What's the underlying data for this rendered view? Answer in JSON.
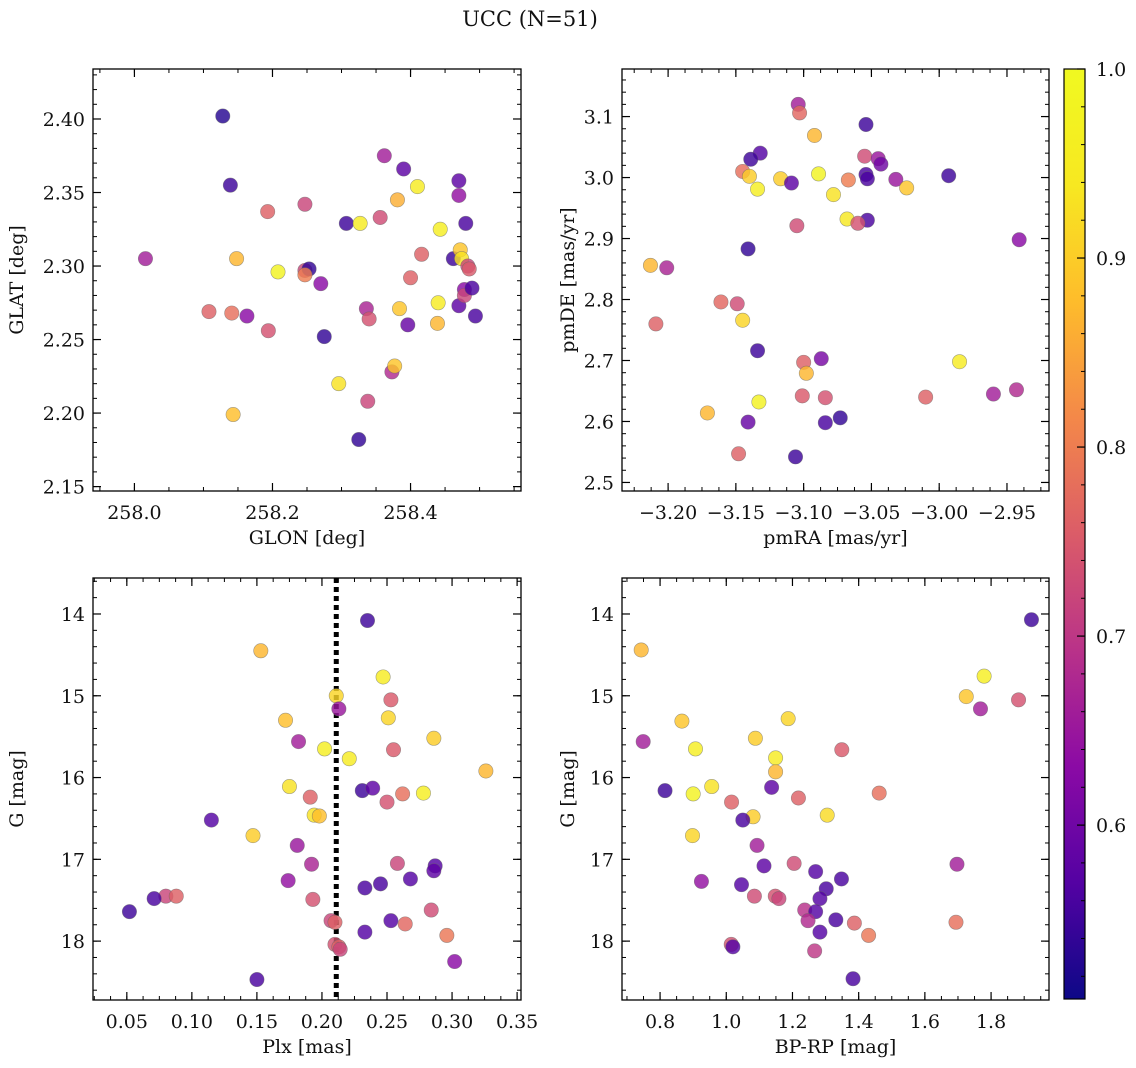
{
  "figure": {
    "title": "UCC (N=51)",
    "colorbar": {
      "ticks": [
        "0.6",
        "0.7",
        "0.8",
        "0.9",
        "1.0"
      ],
      "tick_values": [
        0.6,
        0.7,
        0.8,
        0.9,
        1.0
      ],
      "range": [
        0.508,
        1.0
      ],
      "colormap": "plasma"
    },
    "colors": {
      "low": "#0d0887",
      "mid": "#cc4778",
      "high": "#f0f921",
      "vline": "#000000"
    }
  },
  "chart_data": [
    {
      "type": "scatter",
      "xlabel": "GLON [deg]",
      "ylabel": "GLAT [deg]",
      "xlim": [
        257.94,
        258.56
      ],
      "ylim": [
        2.147,
        2.434
      ],
      "xticks": [
        "258.0",
        "258.2",
        "258.4"
      ],
      "xtick_values": [
        258.0,
        258.2,
        258.4
      ],
      "yticks": [
        "2.15",
        "2.20",
        "2.25",
        "2.30",
        "2.35",
        "2.40"
      ],
      "ytick_values": [
        2.15,
        2.2,
        2.25,
        2.3,
        2.35,
        2.4
      ],
      "points": [
        [
          258.128,
          2.402,
          0.53
        ],
        [
          258.139,
          2.355,
          0.55
        ],
        [
          258.016,
          2.305,
          0.66
        ],
        [
          258.108,
          2.269,
          0.76
        ],
        [
          258.141,
          2.268,
          0.78
        ],
        [
          258.148,
          2.305,
          0.87
        ],
        [
          258.163,
          2.266,
          0.63
        ],
        [
          258.194,
          2.256,
          0.74
        ],
        [
          258.193,
          2.337,
          0.76
        ],
        [
          258.143,
          2.199,
          0.88
        ],
        [
          258.208,
          2.296,
          0.98
        ],
        [
          258.247,
          2.342,
          0.72
        ],
        [
          258.247,
          2.297,
          0.72
        ],
        [
          258.253,
          2.298,
          0.54
        ],
        [
          258.247,
          2.294,
          0.8
        ],
        [
          258.27,
          2.288,
          0.63
        ],
        [
          258.275,
          2.252,
          0.54
        ],
        [
          258.296,
          2.22,
          0.93
        ],
        [
          258.307,
          2.329,
          0.55
        ],
        [
          258.325,
          2.182,
          0.54
        ],
        [
          258.327,
          2.329,
          0.95
        ],
        [
          258.336,
          2.271,
          0.67
        ],
        [
          258.338,
          2.208,
          0.72
        ],
        [
          258.34,
          2.264,
          0.74
        ],
        [
          258.356,
          2.333,
          0.73
        ],
        [
          258.362,
          2.375,
          0.66
        ],
        [
          258.373,
          2.228,
          0.68
        ],
        [
          258.377,
          2.232,
          0.89
        ],
        [
          258.381,
          2.345,
          0.86
        ],
        [
          258.384,
          2.271,
          0.89
        ],
        [
          258.39,
          2.366,
          0.58
        ],
        [
          258.396,
          2.26,
          0.59
        ],
        [
          258.4,
          2.292,
          0.76
        ],
        [
          258.41,
          2.354,
          0.95
        ],
        [
          258.416,
          2.308,
          0.76
        ],
        [
          258.439,
          2.261,
          0.87
        ],
        [
          258.44,
          2.275,
          0.95
        ],
        [
          258.443,
          2.325,
          0.96
        ],
        [
          258.462,
          2.305,
          0.55
        ],
        [
          258.47,
          2.348,
          0.64
        ],
        [
          258.47,
          2.273,
          0.58
        ],
        [
          258.47,
          2.358,
          0.58
        ],
        [
          258.472,
          2.311,
          0.89
        ],
        [
          258.474,
          2.305,
          0.93
        ],
        [
          258.478,
          2.284,
          0.63
        ],
        [
          258.478,
          2.28,
          0.72
        ],
        [
          258.48,
          2.329,
          0.56
        ],
        [
          258.483,
          2.3,
          0.72
        ],
        [
          258.485,
          2.298,
          0.75
        ],
        [
          258.489,
          2.285,
          0.56
        ],
        [
          258.494,
          2.266,
          0.56
        ]
      ]
    },
    {
      "type": "scatter",
      "xlabel": "pmRA [mas/yr]",
      "ylabel": "pmDE [mas/yr]",
      "xlim": [
        -3.234,
        -2.919
      ],
      "ylim": [
        2.486,
        3.178
      ],
      "xticks": [
        "−3.20",
        "−3.15",
        "−3.10",
        "−3.05",
        "−3.00",
        "−2.95"
      ],
      "xtick_values": [
        -3.2,
        -3.15,
        -3.1,
        -3.05,
        -3.0,
        -2.95
      ],
      "yticks": [
        "2.5",
        "2.6",
        "2.7",
        "2.8",
        "2.9",
        "3.0",
        "3.1"
      ],
      "ytick_values": [
        2.5,
        2.6,
        2.7,
        2.8,
        2.9,
        3.0,
        3.1
      ],
      "points": [
        [
          -3.104,
          3.12,
          0.66
        ],
        [
          -3.103,
          3.106,
          0.77
        ],
        [
          -3.054,
          3.087,
          0.55
        ],
        [
          -3.092,
          3.069,
          0.87
        ],
        [
          -3.132,
          3.04,
          0.57
        ],
        [
          -3.139,
          3.03,
          0.55
        ],
        [
          -3.055,
          3.035,
          0.73
        ],
        [
          -3.045,
          3.031,
          0.65
        ],
        [
          -3.043,
          3.022,
          0.6
        ],
        [
          -3.145,
          3.01,
          0.78
        ],
        [
          -3.054,
          3.005,
          0.56
        ],
        [
          -3.089,
          3.006,
          0.98
        ],
        [
          -2.993,
          3.003,
          0.55
        ],
        [
          -3.14,
          3.002,
          0.9
        ],
        [
          -3.117,
          2.998,
          0.9
        ],
        [
          -3.067,
          2.996,
          0.8
        ],
        [
          -3.053,
          2.998,
          0.56
        ],
        [
          -3.032,
          2.997,
          0.65
        ],
        [
          -3.109,
          2.991,
          0.58
        ],
        [
          -3.134,
          2.981,
          0.96
        ],
        [
          -3.024,
          2.983,
          0.89
        ],
        [
          -3.078,
          2.972,
          0.93
        ],
        [
          -3.068,
          2.932,
          0.94
        ],
        [
          -3.053,
          2.93,
          0.56
        ],
        [
          -3.06,
          2.925,
          0.74
        ],
        [
          -3.105,
          2.921,
          0.73
        ],
        [
          -2.941,
          2.898,
          0.63
        ],
        [
          -3.141,
          2.883,
          0.54
        ],
        [
          -3.213,
          2.856,
          0.87
        ],
        [
          -3.201,
          2.852,
          0.67
        ],
        [
          -3.161,
          2.796,
          0.77
        ],
        [
          -3.149,
          2.793,
          0.73
        ],
        [
          -3.209,
          2.76,
          0.76
        ],
        [
          -3.145,
          2.766,
          0.91
        ],
        [
          -3.134,
          2.716,
          0.55
        ],
        [
          -3.087,
          2.703,
          0.61
        ],
        [
          -3.1,
          2.697,
          0.76
        ],
        [
          -2.985,
          2.698,
          0.95
        ],
        [
          -3.098,
          2.679,
          0.87
        ],
        [
          -2.96,
          2.645,
          0.66
        ],
        [
          -2.943,
          2.652,
          0.68
        ],
        [
          -3.101,
          2.642,
          0.75
        ],
        [
          -3.084,
          2.639,
          0.74
        ],
        [
          -3.01,
          2.64,
          0.76
        ],
        [
          -3.133,
          2.632,
          0.97
        ],
        [
          -3.171,
          2.614,
          0.87
        ],
        [
          -3.073,
          2.606,
          0.54
        ],
        [
          -3.141,
          2.599,
          0.59
        ],
        [
          -3.084,
          2.598,
          0.56
        ],
        [
          -3.148,
          2.547,
          0.76
        ],
        [
          -3.106,
          2.542,
          0.55
        ]
      ]
    },
    {
      "type": "scatter",
      "xlabel": "Plx [mas]",
      "ylabel": "G [mag]",
      "xlim": [
        0.024,
        0.353
      ],
      "ylim": [
        18.72,
        13.56
      ],
      "y_inverted": true,
      "vline": 0.211,
      "xticks": [
        "0.05",
        "0.10",
        "0.15",
        "0.20",
        "0.25",
        "0.30",
        "0.35"
      ],
      "xtick_values": [
        0.05,
        0.1,
        0.15,
        0.2,
        0.25,
        0.3,
        0.35
      ],
      "yticks": [
        "14",
        "15",
        "16",
        "17",
        "18"
      ],
      "ytick_values": [
        14,
        15,
        16,
        17,
        18
      ],
      "points": [
        [
          0.235,
          14.08,
          0.55
        ],
        [
          0.153,
          14.45,
          0.87
        ],
        [
          0.247,
          14.77,
          0.95
        ],
        [
          0.211,
          15.0,
          0.91
        ],
        [
          0.253,
          15.05,
          0.75
        ],
        [
          0.213,
          15.16,
          0.65
        ],
        [
          0.172,
          15.3,
          0.88
        ],
        [
          0.251,
          15.27,
          0.91
        ],
        [
          0.286,
          15.52,
          0.9
        ],
        [
          0.182,
          15.56,
          0.66
        ],
        [
          0.202,
          15.65,
          0.96
        ],
        [
          0.255,
          15.66,
          0.75
        ],
        [
          0.221,
          15.77,
          0.95
        ],
        [
          0.326,
          15.92,
          0.87
        ],
        [
          0.175,
          16.11,
          0.93
        ],
        [
          0.231,
          16.16,
          0.55
        ],
        [
          0.239,
          16.13,
          0.58
        ],
        [
          0.278,
          16.19,
          0.96
        ],
        [
          0.262,
          16.2,
          0.78
        ],
        [
          0.191,
          16.24,
          0.76
        ],
        [
          0.25,
          16.3,
          0.74
        ],
        [
          0.194,
          16.46,
          0.93
        ],
        [
          0.198,
          16.47,
          0.88
        ],
        [
          0.115,
          16.52,
          0.57
        ],
        [
          0.147,
          16.71,
          0.9
        ],
        [
          0.181,
          16.83,
          0.65
        ],
        [
          0.192,
          17.06,
          0.67
        ],
        [
          0.258,
          17.05,
          0.72
        ],
        [
          0.287,
          17.08,
          0.57
        ],
        [
          0.286,
          17.14,
          0.58
        ],
        [
          0.174,
          17.26,
          0.64
        ],
        [
          0.268,
          17.24,
          0.57
        ],
        [
          0.245,
          17.3,
          0.56
        ],
        [
          0.233,
          17.35,
          0.56
        ],
        [
          0.08,
          17.45,
          0.72
        ],
        [
          0.088,
          17.45,
          0.76
        ],
        [
          0.071,
          17.48,
          0.56
        ],
        [
          0.193,
          17.49,
          0.74
        ],
        [
          0.052,
          17.64,
          0.55
        ],
        [
          0.284,
          17.62,
          0.73
        ],
        [
          0.207,
          17.75,
          0.72
        ],
        [
          0.21,
          17.77,
          0.76
        ],
        [
          0.253,
          17.75,
          0.57
        ],
        [
          0.264,
          17.79,
          0.77
        ],
        [
          0.233,
          17.89,
          0.57
        ],
        [
          0.296,
          17.93,
          0.79
        ],
        [
          0.21,
          18.04,
          0.74
        ],
        [
          0.213,
          18.07,
          0.76
        ],
        [
          0.214,
          18.1,
          0.72
        ],
        [
          0.302,
          18.25,
          0.63
        ],
        [
          0.15,
          18.47,
          0.56
        ]
      ]
    },
    {
      "type": "scatter",
      "xlabel": "BP-RP [mag]",
      "ylabel": "G [mag]",
      "xlim": [
        0.685,
        1.975
      ],
      "ylim": [
        18.72,
        13.56
      ],
      "y_inverted": true,
      "xticks": [
        "0.8",
        "1.0",
        "1.2",
        "1.4",
        "1.6",
        "1.8"
      ],
      "xtick_values": [
        0.8,
        1.0,
        1.2,
        1.4,
        1.6,
        1.8
      ],
      "yticks": [
        "14",
        "15",
        "16",
        "17",
        "18"
      ],
      "ytick_values": [
        14,
        15,
        16,
        17,
        18
      ],
      "points": [
        [
          1.922,
          14.07,
          0.55
        ],
        [
          0.743,
          14.44,
          0.87
        ],
        [
          1.779,
          14.76,
          0.96
        ],
        [
          1.725,
          15.01,
          0.89
        ],
        [
          1.883,
          15.05,
          0.74
        ],
        [
          1.768,
          15.16,
          0.66
        ],
        [
          0.866,
          15.31,
          0.89
        ],
        [
          1.187,
          15.28,
          0.91
        ],
        [
          1.088,
          15.52,
          0.9
        ],
        [
          0.749,
          15.56,
          0.66
        ],
        [
          0.907,
          15.65,
          0.96
        ],
        [
          1.349,
          15.66,
          0.75
        ],
        [
          1.149,
          15.76,
          0.95
        ],
        [
          1.149,
          15.93,
          0.87
        ],
        [
          0.956,
          16.11,
          0.93
        ],
        [
          1.137,
          16.12,
          0.58
        ],
        [
          0.815,
          16.16,
          0.55
        ],
        [
          1.462,
          16.19,
          0.78
        ],
        [
          0.9,
          16.2,
          0.97
        ],
        [
          1.218,
          16.25,
          0.76
        ],
        [
          1.016,
          16.3,
          0.76
        ],
        [
          1.305,
          16.46,
          0.92
        ],
        [
          1.081,
          16.48,
          0.9
        ],
        [
          1.05,
          16.52,
          0.56
        ],
        [
          0.898,
          16.71,
          0.91
        ],
        [
          1.093,
          16.83,
          0.66
        ],
        [
          1.205,
          17.05,
          0.73
        ],
        [
          1.697,
          17.06,
          0.66
        ],
        [
          1.114,
          17.08,
          0.58
        ],
        [
          1.27,
          17.15,
          0.57
        ],
        [
          0.925,
          17.27,
          0.64
        ],
        [
          1.348,
          17.24,
          0.56
        ],
        [
          1.046,
          17.31,
          0.57
        ],
        [
          1.302,
          17.36,
          0.56
        ],
        [
          1.085,
          17.45,
          0.73
        ],
        [
          1.148,
          17.45,
          0.74
        ],
        [
          1.159,
          17.48,
          0.72
        ],
        [
          1.283,
          17.48,
          0.57
        ],
        [
          1.237,
          17.62,
          0.69
        ],
        [
          1.27,
          17.64,
          0.57
        ],
        [
          1.331,
          17.74,
          0.56
        ],
        [
          1.247,
          17.75,
          0.68
        ],
        [
          1.694,
          17.77,
          0.78
        ],
        [
          1.387,
          17.78,
          0.76
        ],
        [
          1.283,
          17.89,
          0.57
        ],
        [
          1.43,
          17.93,
          0.79
        ],
        [
          1.015,
          18.04,
          0.74
        ],
        [
          1.02,
          18.07,
          0.57
        ],
        [
          1.267,
          18.12,
          0.7
        ],
        [
          1.383,
          18.46,
          0.56
        ]
      ]
    }
  ]
}
